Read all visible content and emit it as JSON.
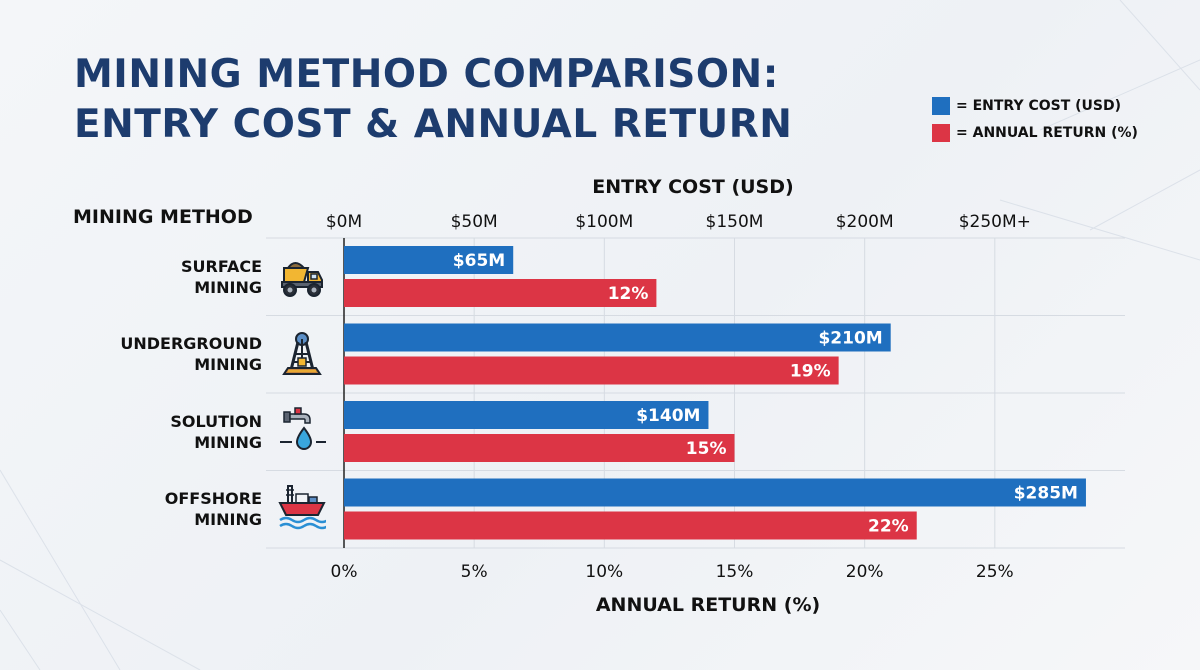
{
  "title_lines": [
    "MINING METHOD COMPARISON:",
    "ENTRY COST & ANNUAL RETURN"
  ],
  "legend": [
    {
      "label": "= ENTRY COST (USD)",
      "color": "#1f6fbf"
    },
    {
      "label": "= ANNUAL RETURN (%)",
      "color": "#dc3545"
    }
  ],
  "categories": [
    {
      "lines": [
        "SURFACE",
        "MINING"
      ],
      "icon": "dump-truck-icon"
    },
    {
      "lines": [
        "UNDERGROUND",
        "MINING"
      ],
      "icon": "mine-headframe-icon"
    },
    {
      "lines": [
        "SOLUTION",
        "MINING"
      ],
      "icon": "faucet-droplet-icon"
    },
    {
      "lines": [
        "OFFSHORE",
        "MINING"
      ],
      "icon": "offshore-platform-ship-icon"
    }
  ],
  "chart_data": {
    "type": "bar",
    "orientation": "horizontal",
    "y_axis_title": "MINING METHOD",
    "categories": [
      "SURFACE MINING",
      "UNDERGROUND MINING",
      "SOLUTION MINING",
      "OFFSHORE MINING"
    ],
    "series": [
      {
        "name": "ENTRY COST (USD)",
        "color": "#1f6fbf",
        "values": [
          65,
          210,
          140,
          285
        ],
        "labels": [
          "$65M",
          "$210M",
          "$140M",
          "$285M"
        ],
        "axis": "top"
      },
      {
        "name": "ANNUAL RETURN (%)",
        "color": "#dc3545",
        "values": [
          12,
          19,
          15,
          22
        ],
        "labels": [
          "12%",
          "19%",
          "15%",
          "22%"
        ],
        "axis": "bottom"
      }
    ],
    "top_axis": {
      "title": "ENTRY COST (USD)",
      "range": [
        0,
        300
      ],
      "ticks": [
        0,
        50,
        100,
        150,
        200,
        250
      ],
      "tick_labels": [
        "$0M",
        "$50M",
        "$100M",
        "$150M",
        "$200M",
        "$250M+"
      ]
    },
    "bottom_axis": {
      "title": "ANNUAL RETURN (%)",
      "range": [
        0,
        30
      ],
      "ticks": [
        0,
        5,
        10,
        15,
        20,
        25
      ],
      "tick_labels": [
        "0%",
        "5%",
        "10%",
        "15%",
        "20%",
        "25%"
      ]
    },
    "grid": true,
    "legend_position": "top-right"
  }
}
